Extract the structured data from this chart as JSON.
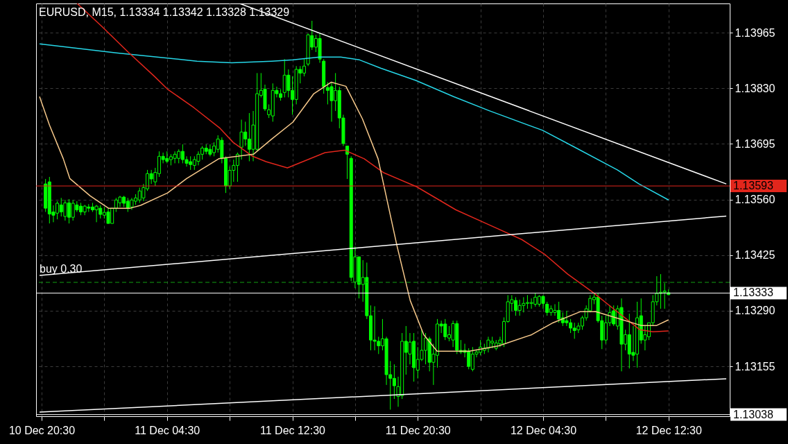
{
  "chart_data": {
    "type": "candlestick",
    "title": "EURUSD, M15, 1.13334 1.13342 1.13328 1.13329",
    "color": "#00ff00",
    "x": [
      "--12-10T20:45",
      "--12-10T21:00",
      "--12-10T21:15",
      "--12-10T21:30",
      "--12-10T21:45",
      "--12-10T22:00",
      "--12-10T22:15",
      "--12-10T22:30",
      "--12-10T22:45",
      "--12-10T23:00",
      "--12-10T23:15",
      "--12-10T23:30",
      "--12-10T23:45",
      "--12-11T00:00",
      "--12-11T00:15",
      "--12-11T00:30",
      "--12-11T00:45",
      "--12-11T01:00",
      "--12-11T01:15",
      "--12-11T01:30",
      "--12-11T01:45",
      "--12-11T02:00",
      "--12-11T02:15",
      "--12-11T02:30",
      "--12-11T02:45",
      "--12-11T03:00",
      "--12-11T03:15",
      "--12-11T03:30",
      "--12-11T03:45",
      "--12-11T04:00",
      "--12-11T04:15",
      "--12-11T04:30",
      "--12-11T04:45",
      "--12-11T05:00",
      "--12-11T05:15",
      "--12-11T05:30",
      "--12-11T05:45",
      "--12-11T06:00",
      "--12-11T06:15",
      "--12-11T06:30",
      "--12-11T06:45",
      "--12-11T07:00",
      "--12-11T07:15",
      "--12-11T07:30",
      "--12-11T07:45",
      "--12-11T08:00",
      "--12-11T08:15",
      "--12-11T08:30",
      "--12-11T08:45",
      "--12-11T09:00",
      "--12-11T09:15",
      "--12-11T09:30",
      "--12-11T09:45",
      "--12-11T10:00",
      "--12-11T10:15",
      "--12-11T10:30",
      "--12-11T10:45",
      "--12-11T11:00",
      "--12-11T11:15",
      "--12-11T11:30",
      "--12-11T11:45",
      "--12-11T12:00",
      "--12-11T12:15",
      "--12-11T12:30",
      "--12-11T12:45",
      "--12-11T13:00",
      "--12-11T13:15",
      "--12-11T13:30",
      "--12-11T13:45",
      "--12-11T14:00",
      "--12-11T14:15",
      "--12-11T14:30",
      "--12-11T14:45",
      "--12-11T15:00",
      "--12-11T15:15",
      "--12-11T15:30",
      "--12-11T15:45",
      "--12-11T16:00",
      "--12-11T16:15",
      "--12-11T16:30",
      "--12-11T16:45",
      "--12-11T17:00",
      "--12-11T17:15",
      "--12-11T17:30",
      "--12-11T17:45",
      "--12-11T18:00",
      "--12-11T18:15",
      "--12-11T18:30",
      "--12-11T18:45",
      "--12-11T19:00",
      "--12-11T19:15",
      "--12-11T19:30",
      "--12-11T19:45",
      "--12-11T20:00",
      "--12-11T20:15",
      "--12-11T20:30",
      "--12-11T20:45",
      "--12-11T21:00",
      "--12-11T21:15",
      "--12-11T21:30",
      "--12-11T21:45",
      "--12-11T22:00",
      "--12-11T22:15",
      "--12-11T22:30",
      "--12-11T22:45",
      "--12-11T23:00",
      "--12-11T23:15",
      "--12-11T23:30",
      "--12-11T23:45",
      "--12-12T00:00",
      "--12-12T00:15",
      "--12-12T00:30",
      "--12-12T00:45",
      "--12-12T01:00",
      "--12-12T01:15",
      "--12-12T01:30",
      "--12-12T01:45",
      "--12-12T02:00",
      "--12-12T02:15",
      "--12-12T02:30",
      "--12-12T02:45",
      "--12-12T03:00",
      "--12-12T03:15",
      "--12-12T03:30",
      "--12-12T03:45",
      "--12-12T04:00",
      "--12-12T04:15",
      "--12-12T04:30",
      "--12-12T04:45",
      "--12-12T05:00",
      "--12-12T05:15",
      "--12-12T05:30",
      "--12-12T05:45",
      "--12-12T06:00",
      "--12-12T06:15",
      "--12-12T06:30",
      "--12-12T06:45",
      "--12-12T07:00",
      "--12-12T07:15",
      "--12-12T07:30",
      "--12-12T07:45",
      "--12-12T08:00",
      "--12-12T08:15",
      "--12-12T08:30",
      "--12-12T08:45",
      "--12-12T09:00",
      "--12-12T09:15",
      "--12-12T09:30",
      "--12-12T09:45",
      "--12-12T10:00",
      "--12-12T10:15",
      "--12-12T10:30",
      "--12-12T10:45",
      "--12-12T11:00",
      "--12-12T11:15",
      "--12-12T11:30",
      "--12-12T11:45",
      "--12-12T12:00",
      "--12-12T12:15",
      "--12-12T12:30"
    ],
    "ohlc": [
      [
        1.13598,
        1.1361,
        1.1353,
        1.13539
      ],
      [
        1.13603,
        1.13615,
        1.13502,
        1.13525
      ],
      [
        1.1353,
        1.13546,
        1.13505,
        1.13522
      ],
      [
        1.13527,
        1.13556,
        1.13512,
        1.13551
      ],
      [
        1.13547,
        1.13564,
        1.13519,
        1.1353
      ],
      [
        1.13519,
        1.13559,
        1.13509,
        1.13552
      ],
      [
        1.13552,
        1.13561,
        1.13502,
        1.13517
      ],
      [
        1.13517,
        1.13559,
        1.13509,
        1.13551
      ],
      [
        1.13547,
        1.13556,
        1.1353,
        1.13535
      ],
      [
        1.13544,
        1.13552,
        1.13522,
        1.1353
      ],
      [
        1.1353,
        1.13547,
        1.13522,
        1.13544
      ],
      [
        1.13542,
        1.13549,
        1.1353,
        1.13539
      ],
      [
        1.13542,
        1.13552,
        1.1353,
        1.13535
      ],
      [
        1.13535,
        1.13547,
        1.13505,
        1.13544
      ],
      [
        1.13539,
        1.13546,
        1.13514,
        1.13524
      ],
      [
        1.13522,
        1.13542,
        1.13514,
        1.13529
      ],
      [
        1.1353,
        1.13539,
        1.13502,
        1.13502
      ],
      [
        1.13502,
        1.13539,
        1.13502,
        1.13539
      ],
      [
        1.13539,
        1.13564,
        1.1353,
        1.13559
      ],
      [
        1.13552,
        1.13569,
        1.13542,
        1.13566
      ],
      [
        1.13566,
        1.13569,
        1.13542,
        1.13551
      ],
      [
        1.13556,
        1.13564,
        1.1353,
        1.13539
      ],
      [
        1.13542,
        1.13564,
        1.13535,
        1.13559
      ],
      [
        1.13556,
        1.13573,
        1.13547,
        1.13564
      ],
      [
        1.13559,
        1.13589,
        1.13552,
        1.13581
      ],
      [
        1.13564,
        1.13598,
        1.13556,
        1.13589
      ],
      [
        1.13586,
        1.13632,
        1.13581,
        1.13623
      ],
      [
        1.13623,
        1.13632,
        1.13598,
        1.1361
      ],
      [
        1.13603,
        1.13637,
        1.13593,
        1.13626
      ],
      [
        1.13623,
        1.13677,
        1.13615,
        1.13665
      ],
      [
        1.13665,
        1.13674,
        1.13648,
        1.13657
      ],
      [
        1.1366,
        1.13677,
        1.13648,
        1.13653
      ],
      [
        1.13657,
        1.1367,
        1.13643,
        1.13664
      ],
      [
        1.1366,
        1.13677,
        1.13648,
        1.1367
      ],
      [
        1.1366,
        1.13682,
        1.13648,
        1.13677
      ],
      [
        1.13677,
        1.13694,
        1.13648,
        1.13657
      ],
      [
        1.13657,
        1.13665,
        1.1364,
        1.13648
      ],
      [
        1.13652,
        1.13665,
        1.13632,
        1.13645
      ],
      [
        1.13643,
        1.13665,
        1.13632,
        1.13657
      ],
      [
        1.13653,
        1.13677,
        1.13643,
        1.1367
      ],
      [
        1.1367,
        1.1369,
        1.13657,
        1.13685
      ],
      [
        1.13685,
        1.13694,
        1.1367,
        1.13677
      ],
      [
        1.13682,
        1.13694,
        1.13665,
        1.1367
      ],
      [
        1.13674,
        1.13699,
        1.13665,
        1.1369
      ],
      [
        1.13682,
        1.13716,
        1.13674,
        1.13707
      ],
      [
        1.13704,
        1.13711,
        1.13648,
        1.1366
      ],
      [
        1.1366,
        1.13665,
        1.13576,
        1.13593
      ],
      [
        1.13593,
        1.1364,
        1.13586,
        1.13631
      ],
      [
        1.13631,
        1.13657,
        1.13603,
        1.13643
      ],
      [
        1.13643,
        1.13674,
        1.13603,
        1.1367
      ],
      [
        1.13687,
        1.13754,
        1.13657,
        1.13724
      ],
      [
        1.13724,
        1.13749,
        1.1369,
        1.13707
      ],
      [
        1.13707,
        1.1377,
        1.13653,
        1.13682
      ],
      [
        1.13682,
        1.13775,
        1.13653,
        1.13741
      ],
      [
        1.13682,
        1.13867,
        1.13677,
        1.13817
      ],
      [
        1.13813,
        1.13867,
        1.13808,
        1.13825
      ],
      [
        1.13828,
        1.13839,
        1.13775,
        1.1378
      ],
      [
        1.13766,
        1.13791,
        1.13758,
        1.13778
      ],
      [
        1.13763,
        1.13842,
        1.13749,
        1.13825
      ],
      [
        1.13825,
        1.13834,
        1.13808,
        1.13817
      ],
      [
        1.13817,
        1.13828,
        1.138,
        1.13808
      ],
      [
        1.1382,
        1.13901,
        1.13808,
        1.13862
      ],
      [
        1.13862,
        1.13876,
        1.13808,
        1.13825
      ],
      [
        1.13825,
        1.13859,
        1.13766,
        1.13803
      ],
      [
        1.13803,
        1.13884,
        1.13791,
        1.13876
      ],
      [
        1.13876,
        1.13884,
        1.13842,
        1.13867
      ],
      [
        1.13867,
        1.13901,
        1.13859,
        1.13884
      ],
      [
        1.13889,
        1.13963,
        1.13884,
        1.1396
      ],
      [
        1.13958,
        1.13994,
        1.13923,
        1.1393
      ],
      [
        1.1393,
        1.1396,
        1.13918,
        1.13951
      ],
      [
        1.13951,
        1.13963,
        1.13892,
        1.13901
      ],
      [
        1.13896,
        1.13901,
        1.13817,
        1.13834
      ],
      [
        1.13832,
        1.13845,
        1.13791,
        1.13825
      ],
      [
        1.13834,
        1.13845,
        1.13749,
        1.138
      ],
      [
        1.138,
        1.13867,
        1.13775,
        1.13825
      ],
      [
        1.13825,
        1.13834,
        1.13733,
        1.13758
      ],
      [
        1.13758,
        1.13766,
        1.1369,
        1.13696
      ],
      [
        1.1369,
        1.1369,
        1.1361,
        1.1367
      ],
      [
        1.1366,
        1.13665,
        1.13362,
        1.13371
      ],
      [
        1.1336,
        1.13446,
        1.13345,
        1.13421
      ],
      [
        1.13421,
        1.13421,
        1.1332,
        1.13354
      ],
      [
        1.13354,
        1.13413,
        1.13312,
        1.13371
      ],
      [
        1.13371,
        1.13407,
        1.1327,
        1.13278
      ],
      [
        1.13278,
        1.13303,
        1.13194,
        1.13219
      ],
      [
        1.13219,
        1.13301,
        1.13194,
        1.13216
      ],
      [
        1.13216,
        1.13227,
        1.13185,
        1.13205
      ],
      [
        1.13205,
        1.1327,
        1.13194,
        1.13222
      ],
      [
        1.13222,
        1.13227,
        1.1311,
        1.13135
      ],
      [
        1.13135,
        1.13168,
        1.1305,
        1.13126
      ],
      [
        1.13126,
        1.1316,
        1.13076,
        1.13108
      ],
      [
        1.13082,
        1.1313,
        1.13057,
        1.13106
      ],
      [
        1.13084,
        1.13236,
        1.13076,
        1.13216
      ],
      [
        1.13216,
        1.13253,
        1.13135,
        1.13189
      ],
      [
        1.13185,
        1.13236,
        1.1316,
        1.13214
      ],
      [
        1.13216,
        1.13236,
        1.13118,
        1.13152
      ],
      [
        1.13146,
        1.13202,
        1.13126,
        1.13172
      ],
      [
        1.13172,
        1.13244,
        1.13168,
        1.13194
      ],
      [
        1.13194,
        1.13236,
        1.1316,
        1.13224
      ],
      [
        1.13222,
        1.13227,
        1.13143,
        1.13165
      ],
      [
        1.13165,
        1.1321,
        1.1311,
        1.13185
      ],
      [
        1.13182,
        1.1327,
        1.13152,
        1.13258
      ],
      [
        1.13258,
        1.13266,
        1.13236,
        1.13253
      ],
      [
        1.13258,
        1.1327,
        1.13219,
        1.13227
      ],
      [
        1.13224,
        1.13253,
        1.13216,
        1.13232
      ],
      [
        1.13219,
        1.13266,
        1.13202,
        1.13259
      ],
      [
        1.13259,
        1.13266,
        1.13185,
        1.13194
      ],
      [
        1.13194,
        1.13219,
        1.13185,
        1.1319
      ],
      [
        1.13194,
        1.1321,
        1.13177,
        1.13189
      ],
      [
        1.13192,
        1.13199,
        1.13148,
        1.13155
      ],
      [
        1.13148,
        1.13202,
        1.13143,
        1.13185
      ],
      [
        1.13185,
        1.13194,
        1.13177,
        1.1319
      ],
      [
        1.13189,
        1.13219,
        1.13182,
        1.13202
      ],
      [
        1.13194,
        1.1321,
        1.13185,
        1.13199
      ],
      [
        1.13199,
        1.13227,
        1.13189,
        1.13219
      ],
      [
        1.13212,
        1.13227,
        1.13199,
        1.13216
      ],
      [
        1.13199,
        1.13219,
        1.13194,
        1.13212
      ],
      [
        1.1321,
        1.13227,
        1.13202,
        1.13219
      ],
      [
        1.1321,
        1.13274,
        1.13202,
        1.13264
      ],
      [
        1.13264,
        1.13328,
        1.13261,
        1.13312
      ],
      [
        1.13308,
        1.13328,
        1.1329,
        1.13317
      ],
      [
        1.13315,
        1.13323,
        1.13278,
        1.13291
      ],
      [
        1.13291,
        1.13317,
        1.13278,
        1.13303
      ],
      [
        1.13303,
        1.13323,
        1.13286,
        1.13308
      ],
      [
        1.13308,
        1.13328,
        1.13295,
        1.1331
      ],
      [
        1.13308,
        1.1332,
        1.13295,
        1.1331
      ],
      [
        1.13306,
        1.13333,
        1.133,
        1.13323
      ],
      [
        1.13306,
        1.13328,
        1.133,
        1.13325
      ],
      [
        1.13325,
        1.13328,
        1.13295,
        1.13308
      ],
      [
        1.13306,
        1.13312,
        1.13278,
        1.13286
      ],
      [
        1.13286,
        1.13303,
        1.13278,
        1.13295
      ],
      [
        1.13286,
        1.13306,
        1.13278,
        1.13291
      ],
      [
        1.13291,
        1.13312,
        1.13261,
        1.1327
      ],
      [
        1.13273,
        1.13286,
        1.13253,
        1.13261
      ],
      [
        1.13266,
        1.1329,
        1.13253,
        1.13261
      ],
      [
        1.13261,
        1.1327,
        1.13236,
        1.13248
      ],
      [
        1.13248,
        1.13261,
        1.13222,
        1.13242
      ],
      [
        1.13244,
        1.13261,
        1.13236,
        1.13253
      ],
      [
        1.13253,
        1.13278,
        1.13244,
        1.13273
      ],
      [
        1.13273,
        1.13303,
        1.13266,
        1.13295
      ],
      [
        1.1329,
        1.13328,
        1.13286,
        1.1332
      ],
      [
        1.13317,
        1.13333,
        1.13306,
        1.13323
      ],
      [
        1.13323,
        1.13333,
        1.13261,
        1.13266
      ],
      [
        1.13266,
        1.13278,
        1.13197,
        1.13219
      ],
      [
        1.13219,
        1.13278,
        1.1321,
        1.13261
      ],
      [
        1.13261,
        1.13303,
        1.13253,
        1.13286
      ],
      [
        1.1329,
        1.13303,
        1.13253,
        1.13258
      ],
      [
        1.13253,
        1.13303,
        1.13244,
        1.13295
      ],
      [
        1.13298,
        1.1332,
        1.13143,
        1.13209
      ],
      [
        1.13209,
        1.13244,
        1.13194,
        1.13232
      ],
      [
        1.13232,
        1.13283,
        1.1315,
        1.13185
      ],
      [
        1.13189,
        1.13253,
        1.13168,
        1.13182
      ],
      [
        1.13185,
        1.13312,
        1.13152,
        1.13273
      ],
      [
        1.13278,
        1.1332,
        1.1321,
        1.13219
      ],
      [
        1.13219,
        1.13253,
        1.13194,
        1.13232
      ],
      [
        1.13227,
        1.13261,
        1.13219,
        1.13261
      ],
      [
        1.13261,
        1.13328,
        1.13253,
        1.13312
      ],
      [
        1.13312,
        1.13374,
        1.13303,
        1.13332
      ],
      [
        1.13332,
        1.13379,
        1.13295,
        1.13335
      ],
      [
        1.13335,
        1.13357,
        1.13295,
        1.13338
      ],
      [
        1.13334,
        1.13342,
        1.13328,
        1.13329
      ]
    ],
    "series": [
      {
        "type": "line",
        "color": "#26d7e8",
        "x": [
          "--12-10T20:22",
          "--12-11T01:16",
          "--12-11T06:25",
          "--12-11T08:38",
          "--12-11T11:11",
          "--12-11T12:32",
          "--12-11T14:14",
          "--12-11T15:35",
          "--12-11T16:47",
          "--12-11T18:08",
          "--12-11T20:23",
          "--12-11T22:47",
          "--12-12T01:02",
          "--12-12T04:28",
          "--12-12T06:31",
          "--12-12T09:14",
          "--12-12T10:37",
          "--12-12T12:30"
        ],
        "values": [
          1.13938,
          1.13916,
          1.13896,
          1.13892,
          1.13896,
          1.13899,
          1.13906,
          1.13906,
          1.13899,
          1.13879,
          1.13849,
          1.1381,
          1.13776,
          1.13728,
          1.13687,
          1.13632,
          1.13598,
          1.13559
        ]
      },
      {
        "type": "line",
        "color": "#e2261c",
        "x": [
          "--12-10T22:46",
          "--12-11T00:21",
          "--12-11T02:01",
          "--12-11T03:42",
          "--12-11T04:32",
          "--12-11T06:13",
          "--12-11T07:53",
          "--12-11T08:43",
          "--12-11T09:58",
          "--12-11T10:49",
          "--12-11T12:11",
          "--12-11T14:35",
          "--12-11T15:50",
          "--12-11T17:05",
          "--12-11T18:20",
          "--12-11T20:26",
          "--12-11T22:56",
          "--12-12T01:02",
          "--12-12T03:08",
          "--12-12T04:38",
          "--12-12T06:04",
          "--12-12T07:44",
          "--12-12T08:59",
          "--12-12T09:49",
          "--12-12T10:40",
          "--12-12T11:30",
          "--12-12T12:30"
        ],
        "values": [
          1.14036,
          1.1398,
          1.13918,
          1.13859,
          1.13828,
          1.13783,
          1.13733,
          1.13699,
          1.13665,
          1.13652,
          1.13637,
          1.13674,
          1.1368,
          1.13659,
          1.13625,
          1.13591,
          1.13535,
          1.13499,
          1.13463,
          1.13426,
          1.13379,
          1.13333,
          1.13295,
          1.1327,
          1.13244,
          1.13239,
          1.13241
        ]
      },
      {
        "type": "line",
        "color": "#f7c98b",
        "x": [
          "--12-10T20:22",
          "--12-10T21:00",
          "--12-10T21:53",
          "--12-10T22:18",
          "--12-10T23:36",
          "--12-11T00:46",
          "--12-11T02:09",
          "--12-11T02:49",
          "--12-11T04:32",
          "--12-11T05:45",
          "--12-11T07:48",
          "--12-11T10:01",
          "--12-11T11:11",
          "--12-11T12:32",
          "--12-11T13:52",
          "--12-11T14:59",
          "--12-11T15:55",
          "--12-11T16:58",
          "--12-11T17:58",
          "--12-11T19:11",
          "--12-11T20:01",
          "--12-11T20:53",
          "--12-11T21:44",
          "--12-11T23:47",
          "--12-12T01:40",
          "--12-12T03:46",
          "--12-12T05:08",
          "--12-12T06:53",
          "--12-12T07:52",
          "--12-12T09:04",
          "--12-12T10:47",
          "--12-12T11:43",
          "--12-12T12:30"
        ],
        "values": [
          1.1381,
          1.13741,
          1.13659,
          1.13611,
          1.13569,
          1.13539,
          1.13539,
          1.13546,
          1.13576,
          1.13611,
          1.13659,
          1.1367,
          1.13707,
          1.13748,
          1.13817,
          1.13845,
          1.13835,
          1.13756,
          1.13659,
          1.13446,
          1.13315,
          1.13232,
          1.13192,
          1.13192,
          1.13205,
          1.13232,
          1.13261,
          1.13288,
          1.13288,
          1.13274,
          1.13254,
          1.13254,
          1.13268
        ]
      },
      {
        "type": "line",
        "color": "#ffffff",
        "x": [
          "--12-11T09:08",
          "--12-12T16:11"
        ],
        "values": [
          1.14036,
          1.13598
        ]
      },
      {
        "type": "line",
        "color": "#ffffff",
        "x": [
          "--12-10T20:22",
          "--12-12T16:11"
        ],
        "values": [
          1.13376,
          1.1352
        ]
      },
      {
        "type": "line",
        "color": "#ffffff",
        "x": [
          "--12-10T20:22",
          "--12-12T16:11"
        ],
        "values": [
          1.13044,
          1.13125
        ]
      }
    ],
    "xlim": [
      "--12-10T20:22",
      "--12-12T16:11"
    ],
    "xticks": [
      {
        "value": "--12-10T20:30",
        "label": "10 Dec 20:30"
      },
      {
        "value": "--12-11T00:30",
        "label": null
      },
      {
        "value": "--12-11T04:30",
        "label": "11 Dec 04:30"
      },
      {
        "value": "--12-11T08:30",
        "label": null
      },
      {
        "value": "--12-11T12:30",
        "label": "11 Dec 12:30"
      },
      {
        "value": "--12-11T16:30",
        "label": null
      },
      {
        "value": "--12-11T20:30",
        "label": "11 Dec 20:30"
      },
      {
        "value": "--12-12T00:30",
        "label": null
      },
      {
        "value": "--12-12T04:30",
        "label": "12 Dec 04:30"
      },
      {
        "value": "--12-12T08:30",
        "label": null
      },
      {
        "value": "--12-12T12:30",
        "label": "12 Dec 12:30"
      }
    ],
    "ylim": [
      1.13034,
      1.14036
    ],
    "yticks": [
      1.13155,
      {
        "value": 1.1329,
        "label": "1.13290"
      },
      1.13425,
      {
        "value": 1.1356,
        "label": "1.13560"
      },
      1.13695,
      {
        "value": 1.1383,
        "label": "1.13830"
      },
      1.13965
    ],
    "ref_lines": [
      {
        "axis": "y",
        "value": 1.13593,
        "label": "1.13593",
        "color": "#e2261c"
      },
      {
        "axis": "y",
        "value": 1.13333,
        "label": "1.13333",
        "color": "#ffffff"
      },
      {
        "axis": "y",
        "value": 1.13038,
        "label": "1.13038",
        "color": "#ffffff"
      },
      {
        "axis": "y",
        "value": 1.13359,
        "label": "buy 0.30",
        "color": "#12a012",
        "line_style": "dashed"
      }
    ],
    "grid": true
  }
}
